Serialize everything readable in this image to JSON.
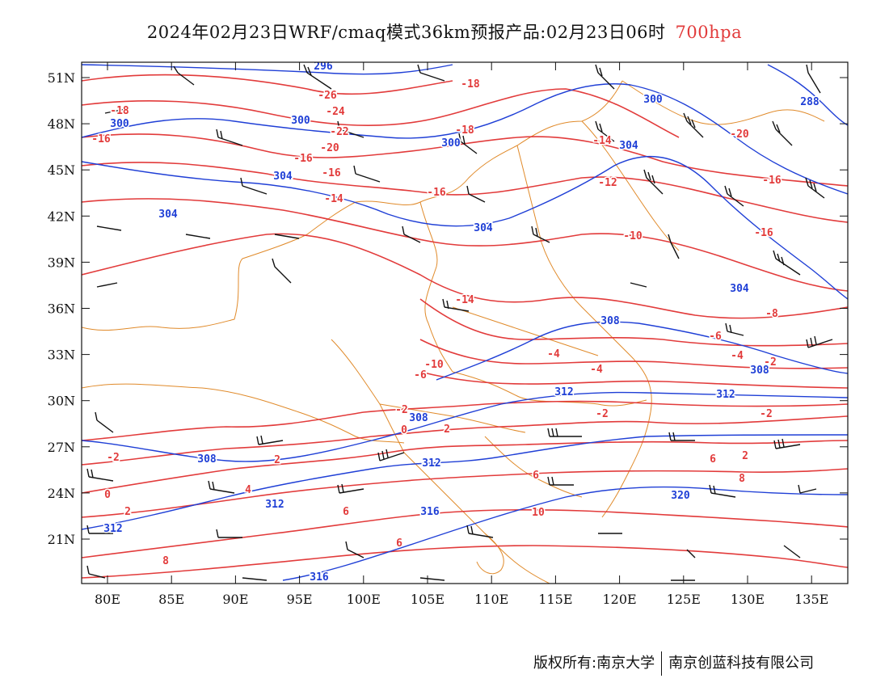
{
  "title": {
    "main": "2024年02月23日WRF/cmaq模式36km预报产品:02月23日06时",
    "level": "700hpa"
  },
  "axes": {
    "lat_labels": [
      "51N",
      "48N",
      "45N",
      "42N",
      "39N",
      "36N",
      "33N",
      "30N",
      "27N",
      "24N",
      "21N"
    ],
    "lon_labels": [
      "80E",
      "85E",
      "90E",
      "95E",
      "100E",
      "105E",
      "110E",
      "115E",
      "120E",
      "125E",
      "130E",
      "135E"
    ]
  },
  "colors": {
    "temperature": "#e23b3b",
    "geopotential": "#1f3fd6",
    "borders": "#e08a2a",
    "wind": "#111111"
  },
  "temperature_labels": [
    "-26",
    "-24",
    "-22",
    "-20",
    "-20",
    "-18",
    "-18",
    "-18",
    "-16",
    "-16",
    "-16",
    "-16",
    "-16",
    "-16",
    "-14",
    "-14",
    "-14",
    "-12",
    "-10",
    "-10",
    "-8",
    "-6",
    "-6",
    "-4",
    "-4",
    "-4",
    "-2",
    "-2",
    "-2",
    "-2",
    "-2",
    "0",
    "0",
    "2",
    "2",
    "2",
    "2",
    "4",
    "6",
    "6",
    "6",
    "6",
    "8",
    "8",
    "10"
  ],
  "height_labels": [
    "296",
    "288",
    "300",
    "300",
    "300",
    "300",
    "304",
    "304",
    "304",
    "304",
    "304",
    "308",
    "308",
    "308",
    "308",
    "312",
    "312",
    "312",
    "312",
    "312",
    "316",
    "316",
    "320"
  ],
  "copyright": {
    "left": "版权所有:南京大学",
    "right": "南京创蓝科技有限公司"
  }
}
